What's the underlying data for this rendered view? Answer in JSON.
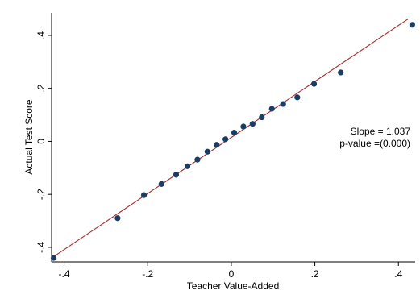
{
  "chart_data": {
    "type": "scatter",
    "xlabel": "Teacher Value-Added",
    "ylabel": "Actual Test Score",
    "xlim": [
      -0.43,
      0.44
    ],
    "ylim": [
      -0.455,
      0.485
    ],
    "x_ticks": [
      -0.4,
      -0.2,
      0,
      0.2,
      0.4
    ],
    "x_tick_labels": [
      "-.4",
      "-.2",
      "0",
      ".2",
      ".4"
    ],
    "y_ticks": [
      -0.4,
      -0.2,
      0,
      0.2,
      0.4
    ],
    "y_tick_labels": [
      "-.4",
      "-.2",
      "0",
      ".2",
      ".4"
    ],
    "grid": false,
    "points": [
      {
        "x": -0.425,
        "y": -0.44
      },
      {
        "x": -0.272,
        "y": -0.29
      },
      {
        "x": -0.209,
        "y": -0.203
      },
      {
        "x": -0.167,
        "y": -0.161
      },
      {
        "x": -0.132,
        "y": -0.126
      },
      {
        "x": -0.105,
        "y": -0.094
      },
      {
        "x": -0.081,
        "y": -0.069
      },
      {
        "x": -0.057,
        "y": -0.039
      },
      {
        "x": -0.035,
        "y": -0.013
      },
      {
        "x": -0.014,
        "y": 0.008
      },
      {
        "x": 0.007,
        "y": 0.033
      },
      {
        "x": 0.029,
        "y": 0.056
      },
      {
        "x": 0.051,
        "y": 0.066
      },
      {
        "x": 0.073,
        "y": 0.091
      },
      {
        "x": 0.097,
        "y": 0.123
      },
      {
        "x": 0.124,
        "y": 0.141
      },
      {
        "x": 0.158,
        "y": 0.166
      },
      {
        "x": 0.198,
        "y": 0.217
      },
      {
        "x": 0.262,
        "y": 0.26
      },
      {
        "x": 0.433,
        "y": 0.44
      }
    ],
    "fit_line": {
      "x1": -0.425,
      "y1": -0.435,
      "x2": 0.423,
      "y2": 0.462
    },
    "annotations": {
      "slope": "Slope = 1.037",
      "pvalue": "p-value =(0.000)"
    },
    "colors": {
      "points": "#1a3d66",
      "fit_line": "#a52a2a",
      "axes": "#000000",
      "background": "#ffffff"
    }
  }
}
